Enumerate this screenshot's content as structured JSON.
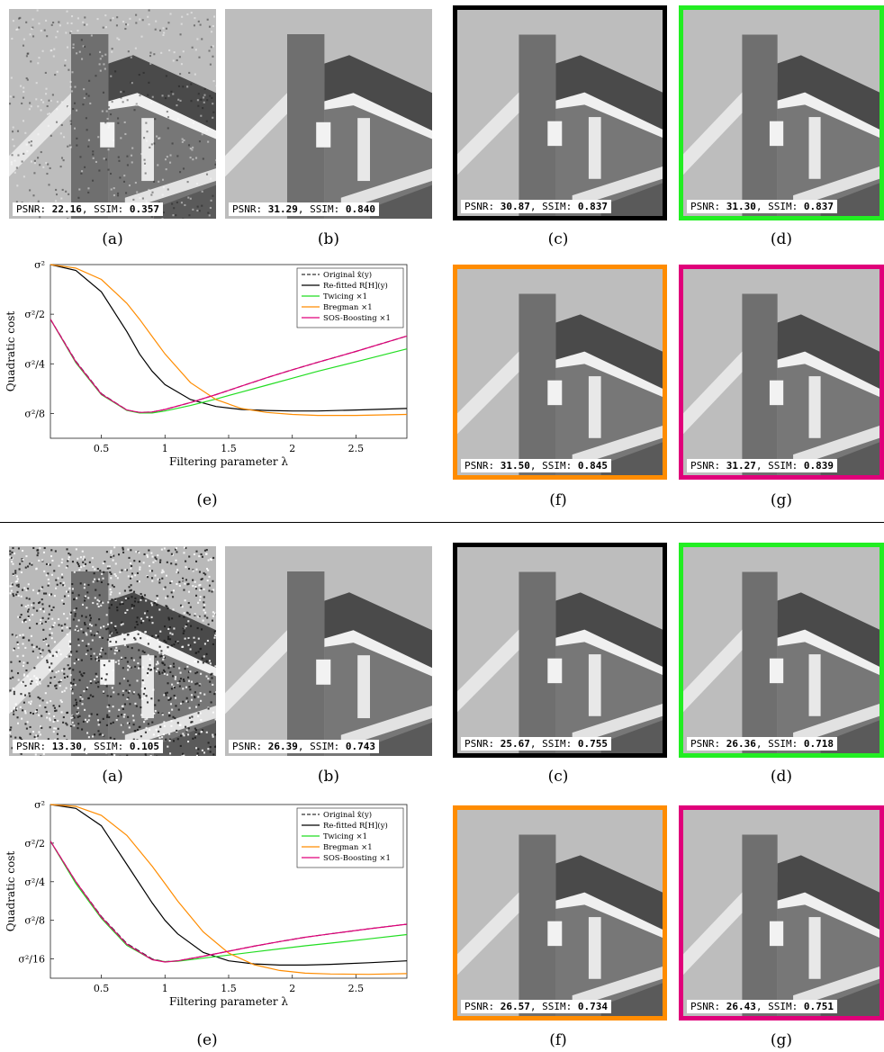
{
  "colors": {
    "refitted": "#000000",
    "twicing": "#22dd22",
    "bregman": "#ff8c00",
    "sos_boosting": "#e0007a",
    "original": "#333333"
  },
  "top": {
    "panels": [
      {
        "caption": "(a)",
        "psnr": "22.16",
        "ssim": "0.357",
        "frame": "none",
        "noise": "medium"
      },
      {
        "caption": "(b)",
        "psnr": "31.29",
        "ssim": "0.840",
        "frame": "none",
        "noise": "smooth"
      },
      {
        "caption": "(c)",
        "psnr": "30.87",
        "ssim": "0.837",
        "frame": "#000000",
        "noise": "smooth"
      },
      {
        "caption": "(d)",
        "psnr": "31.30",
        "ssim": "0.837",
        "frame": "#22ee22",
        "noise": "smooth"
      },
      {
        "caption": "(f)",
        "psnr": "31.50",
        "ssim": "0.845",
        "frame": "#ff8c00",
        "noise": "smooth"
      },
      {
        "caption": "(g)",
        "psnr": "31.27",
        "ssim": "0.839",
        "frame": "#e0007a",
        "noise": "smooth"
      }
    ],
    "chart_caption": "(e)"
  },
  "bottom": {
    "panels": [
      {
        "caption": "(a)",
        "psnr": "13.30",
        "ssim": "0.105",
        "frame": "none",
        "noise": "heavy"
      },
      {
        "caption": "(b)",
        "psnr": "26.39",
        "ssim": "0.743",
        "frame": "none",
        "noise": "smooth"
      },
      {
        "caption": "(c)",
        "psnr": "25.67",
        "ssim": "0.755",
        "frame": "#000000",
        "noise": "smooth"
      },
      {
        "caption": "(d)",
        "psnr": "26.36",
        "ssim": "0.718",
        "frame": "#22ee22",
        "noise": "smooth"
      },
      {
        "caption": "(f)",
        "psnr": "26.57",
        "ssim": "0.734",
        "frame": "#ff8c00",
        "noise": "smooth"
      },
      {
        "caption": "(g)",
        "psnr": "26.43",
        "ssim": "0.751",
        "frame": "#e0007a",
        "noise": "smooth"
      }
    ],
    "chart_caption": "(e)"
  },
  "metric_labels": {
    "psnr": "PSNR: ",
    "ssim": ", SSIM: "
  },
  "chart_data": [
    {
      "type": "line",
      "xlabel": "Filtering parameter λ",
      "ylabel": "Quadratic cost",
      "xlim": [
        0.1,
        2.9
      ],
      "x_ticks": [
        "0.5",
        "1",
        "1.5",
        "2",
        "2.5"
      ],
      "x_tick_values": [
        0.5,
        1,
        1.5,
        2,
        2.5
      ],
      "y_ticks": [
        "σ²",
        "σ²/2",
        "σ²/4",
        "σ²/8"
      ],
      "y_tick_values": [
        0,
        1,
        2,
        3
      ],
      "y_scale": "log2 of σ²/cost",
      "legend_position": "top-right",
      "legend": [
        "Original x̂(y)",
        "Re-fitted R[H](y)",
        "Twicing ×1",
        "Bregman ×1",
        "SOS-Boosting ×1"
      ],
      "x": [
        0.1,
        0.3,
        0.5,
        0.7,
        0.8,
        0.9,
        1.0,
        1.2,
        1.4,
        1.6,
        1.8,
        2.0,
        2.2,
        2.5,
        2.9
      ],
      "series": [
        {
          "name": "Original x̂(y)",
          "style": "dashed",
          "color": "#333333",
          "values": [
            1.1,
            1.95,
            2.6,
            2.93,
            2.98,
            2.97,
            2.92,
            2.78,
            2.62,
            2.45,
            2.28,
            2.12,
            1.97,
            1.75,
            1.44
          ]
        },
        {
          "name": "Re-fitted R[H](y)",
          "style": "solid",
          "color": "#000000",
          "values": [
            0.0,
            0.12,
            0.55,
            1.35,
            1.8,
            2.15,
            2.42,
            2.72,
            2.86,
            2.92,
            2.94,
            2.95,
            2.95,
            2.93,
            2.9
          ]
        },
        {
          "name": "Twicing ×1",
          "style": "solid",
          "color": "#22dd22",
          "values": [
            1.1,
            1.98,
            2.62,
            2.94,
            2.99,
            2.99,
            2.95,
            2.84,
            2.71,
            2.57,
            2.43,
            2.29,
            2.15,
            1.96,
            1.7
          ]
        },
        {
          "name": "Bregman ×1",
          "style": "solid",
          "color": "#ff8c00",
          "values": [
            0.0,
            0.07,
            0.3,
            0.78,
            1.1,
            1.45,
            1.8,
            2.38,
            2.72,
            2.9,
            2.98,
            3.02,
            3.04,
            3.04,
            3.02
          ]
        },
        {
          "name": "SOS-Boosting ×1",
          "style": "solid",
          "color": "#e0007a",
          "values": [
            1.1,
            1.96,
            2.61,
            2.93,
            2.98,
            2.97,
            2.92,
            2.78,
            2.62,
            2.45,
            2.28,
            2.12,
            1.97,
            1.75,
            1.44
          ]
        }
      ]
    },
    {
      "type": "line",
      "xlabel": "Filtering parameter λ",
      "ylabel": "Quadratic cost",
      "xlim": [
        0.1,
        2.9
      ],
      "x_ticks": [
        "0.5",
        "1",
        "1.5",
        "2",
        "2.5"
      ],
      "x_tick_values": [
        0.5,
        1,
        1.5,
        2,
        2.5
      ],
      "y_ticks": [
        "σ²",
        "σ²/2",
        "σ²/4",
        "σ²/8",
        "σ²/16"
      ],
      "y_tick_values": [
        0,
        1,
        2,
        3,
        4
      ],
      "y_scale": "log2 of σ²/cost",
      "legend_position": "top-right",
      "legend": [
        "Original x̂(y)",
        "Re-fitted R[H](y)",
        "Twicing ×1",
        "Bregman ×1",
        "SOS-Boosting ×1"
      ],
      "x": [
        0.1,
        0.3,
        0.5,
        0.7,
        0.9,
        1.0,
        1.1,
        1.3,
        1.5,
        1.7,
        1.9,
        2.1,
        2.3,
        2.6,
        2.9
      ],
      "series": [
        {
          "name": "Original x̂(y)",
          "style": "dashed",
          "color": "#333333",
          "values": [
            0.95,
            2.0,
            2.9,
            3.6,
            4.0,
            4.07,
            4.05,
            3.93,
            3.8,
            3.67,
            3.55,
            3.44,
            3.35,
            3.22,
            3.1
          ]
        },
        {
          "name": "Re-fitted R[H](y)",
          "style": "solid",
          "color": "#000000",
          "values": [
            0.0,
            0.1,
            0.55,
            1.55,
            2.55,
            3.0,
            3.35,
            3.83,
            4.05,
            4.13,
            4.16,
            4.16,
            4.14,
            4.1,
            4.05
          ]
        },
        {
          "name": "Twicing ×1",
          "style": "solid",
          "color": "#22dd22",
          "values": [
            0.95,
            2.05,
            2.95,
            3.65,
            4.02,
            4.07,
            4.06,
            3.98,
            3.9,
            3.82,
            3.74,
            3.66,
            3.59,
            3.48,
            3.37
          ]
        },
        {
          "name": "Bregman ×1",
          "style": "solid",
          "color": "#ff8c00",
          "values": [
            0.0,
            0.05,
            0.28,
            0.8,
            1.6,
            2.05,
            2.5,
            3.3,
            3.85,
            4.15,
            4.3,
            4.37,
            4.39,
            4.4,
            4.38
          ]
        },
        {
          "name": "SOS-Boosting ×1",
          "style": "solid",
          "color": "#e0007a",
          "values": [
            0.95,
            2.0,
            2.92,
            3.62,
            4.02,
            4.08,
            4.05,
            3.93,
            3.8,
            3.67,
            3.55,
            3.44,
            3.35,
            3.22,
            3.1
          ]
        }
      ]
    }
  ]
}
